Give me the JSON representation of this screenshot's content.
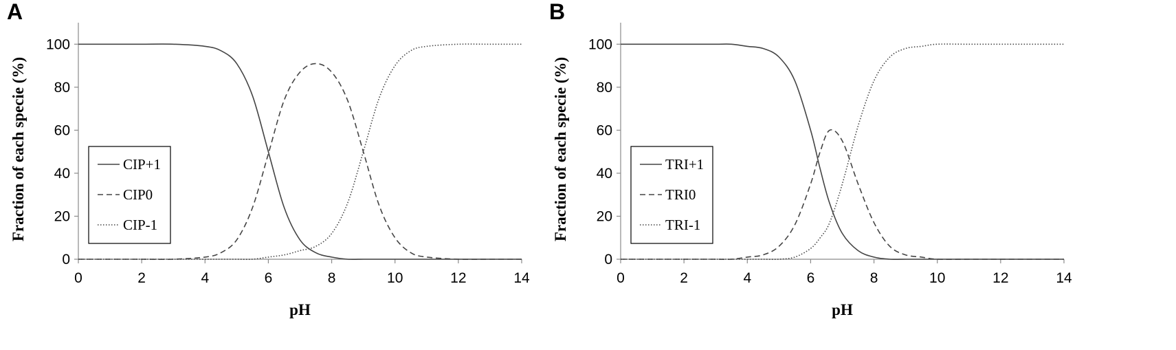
{
  "chart_data": [
    {
      "type": "line",
      "panel_label": "A",
      "xlabel": "pH",
      "ylabel": "Fraction of each specie (%)",
      "xlim": [
        0,
        14
      ],
      "ylim": [
        0,
        110
      ],
      "xticks": [
        0,
        2,
        4,
        6,
        8,
        10,
        12,
        14
      ],
      "yticks": [
        0,
        20,
        40,
        60,
        80,
        100
      ],
      "grid": false,
      "legend_position": "lower-left",
      "x": [
        0,
        1,
        2,
        3,
        4,
        4.5,
        5,
        5.5,
        6,
        6.5,
        7,
        7.5,
        8,
        8.5,
        9,
        9.5,
        10,
        10.5,
        11,
        12,
        13,
        14
      ],
      "series": [
        {
          "name": "CIP+1",
          "style": "solid",
          "values": [
            100,
            100,
            100,
            100,
            99,
            97,
            91,
            76,
            50,
            24,
            9,
            3,
            1,
            0,
            0,
            0,
            0,
            0,
            0,
            0,
            0,
            0
          ]
        },
        {
          "name": "CIP0",
          "style": "dashed",
          "values": [
            0,
            0,
            0,
            0,
            1,
            3,
            9,
            24,
            49,
            74,
            87,
            91,
            87,
            74,
            50,
            25,
            10,
            3,
            1,
            0,
            0,
            0
          ]
        },
        {
          "name": "CIP-1",
          "style": "dotted",
          "values": [
            0,
            0,
            0,
            0,
            0,
            0,
            0,
            0,
            1,
            2,
            4,
            6,
            12,
            26,
            50,
            75,
            90,
            97,
            99,
            100,
            100,
            100
          ]
        }
      ]
    },
    {
      "type": "line",
      "panel_label": "B",
      "xlabel": "pH",
      "ylabel": "Fraction of each specie (%)",
      "xlim": [
        0,
        14
      ],
      "ylim": [
        0,
        110
      ],
      "xticks": [
        0,
        2,
        4,
        6,
        8,
        10,
        12,
        14
      ],
      "yticks": [
        0,
        20,
        40,
        60,
        80,
        100
      ],
      "grid": false,
      "legend_position": "lower-left",
      "x": [
        0,
        1,
        2,
        3,
        3.5,
        4,
        4.5,
        5,
        5.5,
        6,
        6.3,
        6.6,
        7,
        7.5,
        8,
        8.5,
        9,
        9.5,
        10,
        11,
        12,
        13,
        14
      ],
      "series": [
        {
          "name": "TRI+1",
          "style": "solid",
          "values": [
            100,
            100,
            100,
            100,
            100,
            99,
            98,
            94,
            83,
            60,
            42,
            26,
            12,
            4,
            1,
            0,
            0,
            0,
            0,
            0,
            0,
            0,
            0
          ]
        },
        {
          "name": "TRI0",
          "style": "dashed",
          "values": [
            0,
            0,
            0,
            0,
            0,
            1,
            2,
            6,
            16,
            35,
            50,
            60,
            55,
            35,
            17,
            6,
            2,
            1,
            0,
            0,
            0,
            0,
            0
          ]
        },
        {
          "name": "TRI-1",
          "style": "dotted",
          "values": [
            0,
            0,
            0,
            0,
            0,
            0,
            0,
            0,
            1,
            5,
            10,
            17,
            35,
            62,
            83,
            94,
            98,
            99,
            100,
            100,
            100,
            100,
            100
          ]
        }
      ]
    }
  ]
}
